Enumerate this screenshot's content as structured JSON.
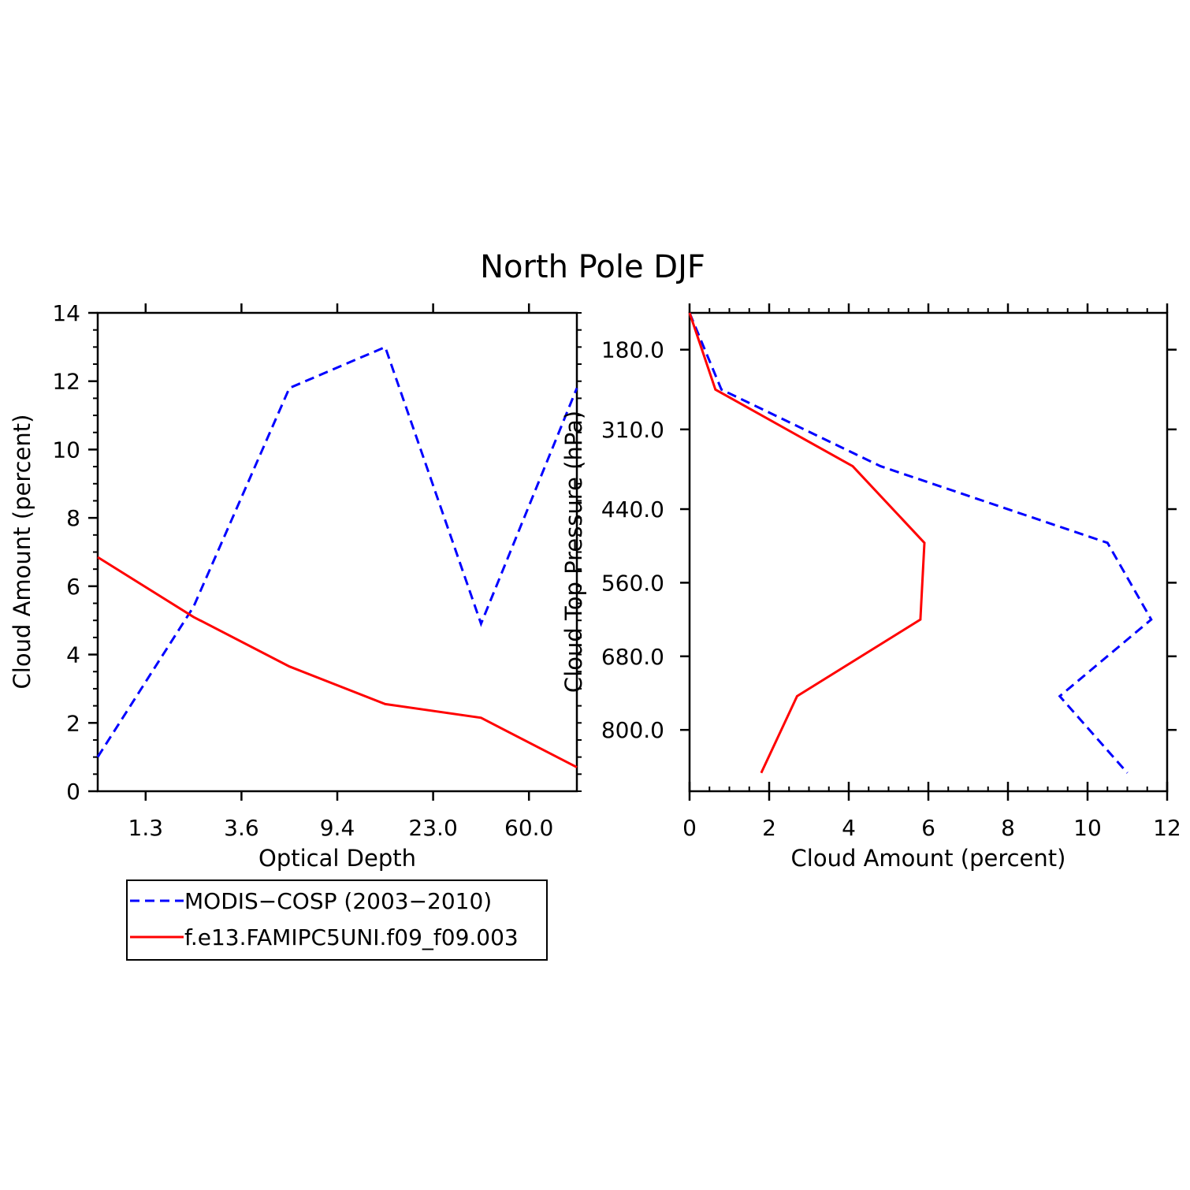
{
  "figure": {
    "title": "North Pole DJF"
  },
  "legend": {
    "items": [
      {
        "label": "MODIS−COSP (2003−2010)",
        "color": "#0000ff",
        "dash": true
      },
      {
        "label": "f.e13.FAMIPC5UNI.f09_f09.003",
        "color": "#ff0000",
        "dash": false
      }
    ]
  },
  "chart_data": [
    {
      "type": "line",
      "xlabel": "Optical Depth",
      "ylabel": "Cloud Amount (percent)",
      "ylim": [
        0,
        14
      ],
      "yticks": [
        "0",
        "2",
        "4",
        "6",
        "8",
        "10",
        "12",
        "14"
      ],
      "x_tick_labels": [
        "1.3",
        "3.6",
        "9.4",
        "23.0",
        "60.0"
      ],
      "x_tick_positions": [
        0.5,
        1.5,
        2.5,
        3.5,
        4.5
      ],
      "xlim": [
        0,
        5
      ],
      "grid": false,
      "legend_position": "below",
      "series": [
        {
          "name": "MODIS−COSP (2003−2010)",
          "color": "#0000ff",
          "dash": true,
          "x": [
            0,
            1,
            2,
            3,
            4,
            5
          ],
          "y": [
            1.0,
            5.4,
            11.8,
            13.0,
            4.9,
            11.8
          ]
        },
        {
          "name": "f.e13.FAMIPC5UNI.f09_f09.003",
          "color": "#ff0000",
          "dash": false,
          "x": [
            0,
            1,
            2,
            3,
            4,
            5
          ],
          "y": [
            6.85,
            5.1,
            3.65,
            2.55,
            2.15,
            0.7
          ]
        }
      ]
    },
    {
      "type": "line",
      "xlabel": "Cloud Amount (percent)",
      "ylabel": "Cloud Top Pressure (hPa)",
      "xlim": [
        0,
        12
      ],
      "xticks": [
        "0",
        "2",
        "4",
        "6",
        "8",
        "10",
        "12"
      ],
      "ylim": [
        120,
        900
      ],
      "y_reversed": true,
      "y_tick_labels": [
        "180.0",
        "310.0",
        "440.0",
        "560.0",
        "680.0",
        "800.0"
      ],
      "y_tick_values": [
        180,
        310,
        440,
        560,
        680,
        800
      ],
      "grid": false,
      "series": [
        {
          "name": "MODIS−COSP (2003−2010)",
          "color": "#0000ff",
          "dash": true,
          "x": [
            0,
            0.8,
            4.8,
            10.5,
            11.6,
            9.3,
            11.0
          ],
          "y": [
            120,
            245,
            370,
            495,
            620,
            745,
            870
          ]
        },
        {
          "name": "f.e13.FAMIPC5UNI.f09_f09.003",
          "color": "#ff0000",
          "dash": false,
          "x": [
            0,
            0.65,
            4.1,
            5.9,
            5.8,
            2.7,
            1.8
          ],
          "y": [
            120,
            245,
            370,
            495,
            620,
            745,
            870
          ]
        }
      ]
    }
  ]
}
